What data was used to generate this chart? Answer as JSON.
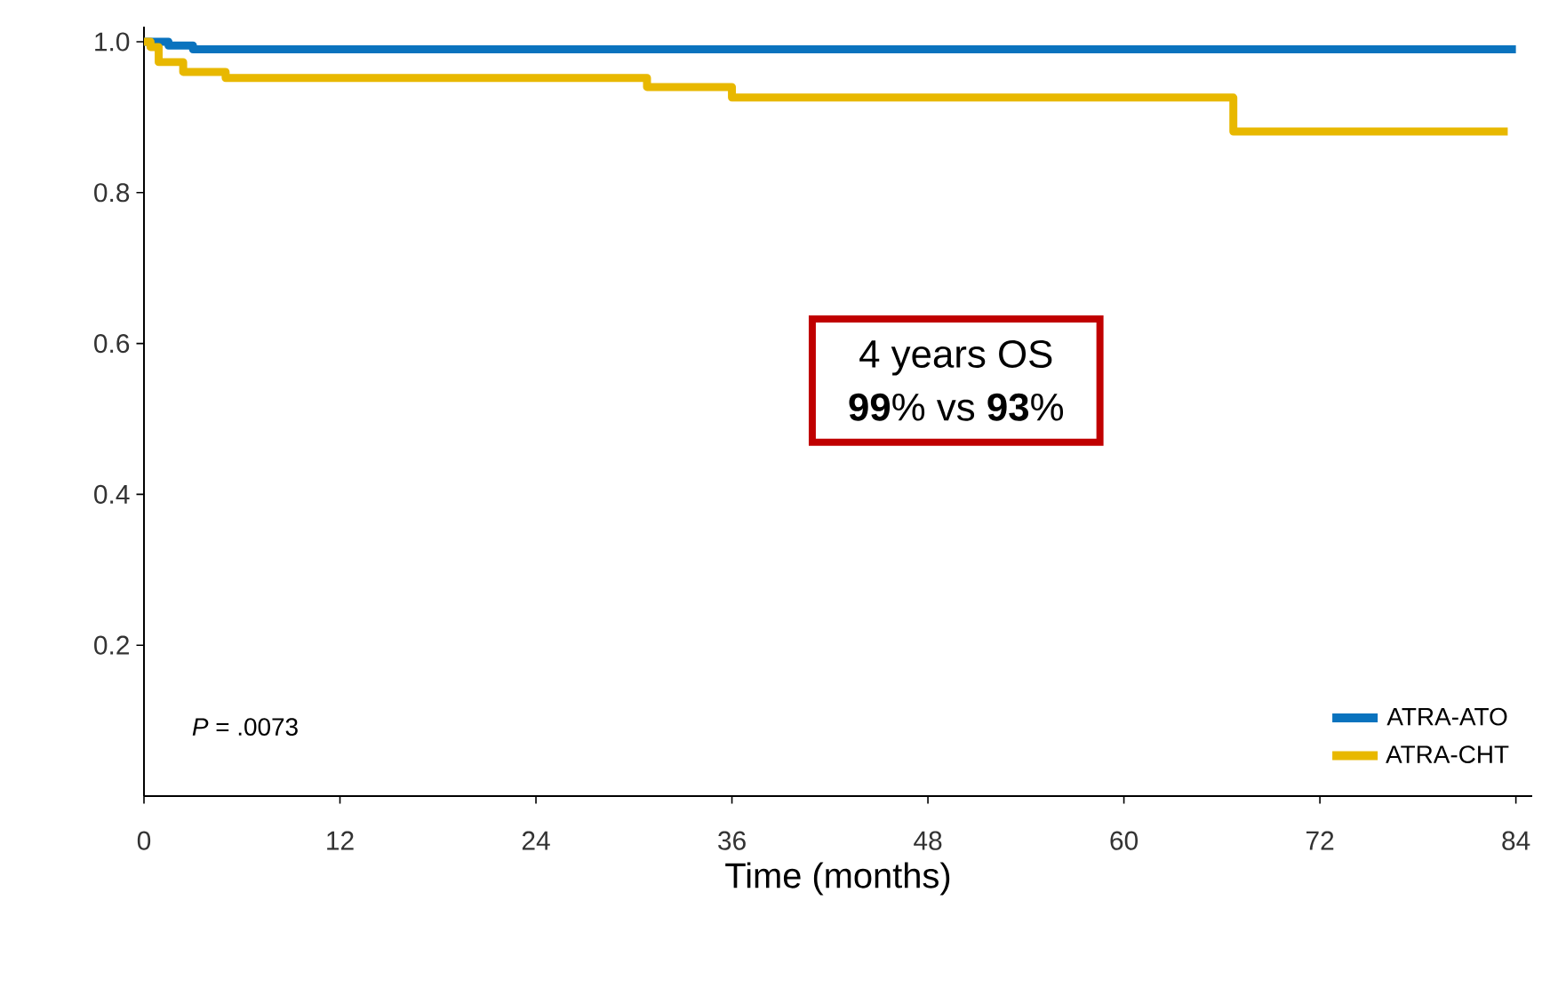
{
  "chart_data": {
    "type": "step",
    "xlabel": "Time (months)",
    "annotations": [
      "4 years OS",
      "**99**% vs **93**%",
      "*P* = .0073"
    ],
    "xlim": [
      0,
      85
    ],
    "ylim": [
      0,
      1.02
    ],
    "xticks": [
      0,
      12,
      24,
      36,
      48,
      60,
      72,
      84
    ],
    "yticks": [
      {
        "value": 0.2,
        "label": "0.2"
      },
      {
        "value": 0.4,
        "label": "0.4"
      },
      {
        "value": 0.6,
        "label": "0.6"
      },
      {
        "value": 0.8,
        "label": "0.8"
      },
      {
        "value": 1.0,
        "label": "1.0"
      }
    ],
    "legend": "bottom right",
    "grid": false,
    "series": [
      {
        "name": "ATRA-ATO",
        "color": "#0a73be",
        "x": [
          0,
          1.5,
          3,
          84
        ],
        "values": [
          1.0,
          0.995,
          0.99,
          0.99
        ]
      },
      {
        "name": "ATRA-CHT",
        "color": "#e8b800",
        "x": [
          0,
          0.4,
          0.9,
          2.4,
          5,
          30.8,
          36,
          66.7,
          83.5
        ],
        "values": [
          1.0,
          0.993,
          0.973,
          0.96,
          0.952,
          0.94,
          0.926,
          0.881,
          0.881
        ]
      }
    ]
  }
}
